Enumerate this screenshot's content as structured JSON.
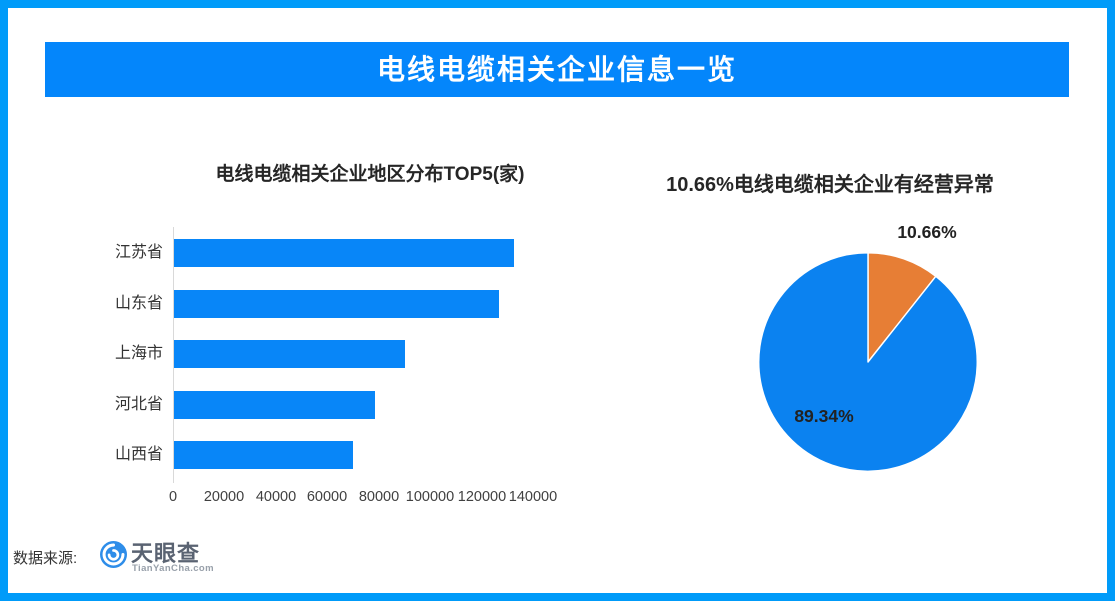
{
  "page": {
    "border_color": "#009BF9",
    "background": "#ffffff"
  },
  "header": {
    "title": "电线电缆相关企业信息一览",
    "bg_color": "#0486FB",
    "text_color": "#ffffff"
  },
  "chart_data": [
    {
      "type": "bar",
      "orientation": "horizontal",
      "title": "电线电缆相关企业地区分布TOP5(家)",
      "categories": [
        "江苏省",
        "山东省",
        "上海市",
        "河北省",
        "山西省"
      ],
      "values": [
        132200,
        126400,
        89800,
        78200,
        69600
      ],
      "xlabel": "",
      "ylabel": "",
      "xlim": [
        0,
        140000
      ],
      "x_ticks": [
        0,
        20000,
        40000,
        60000,
        80000,
        100000,
        120000,
        140000
      ],
      "bar_color": "#0886F8",
      "grid": false,
      "legend": false
    },
    {
      "type": "pie",
      "title": "10.66%电线电缆相关企业有经营异常",
      "slices": [
        {
          "label": "10.66%",
          "value": 10.66,
          "color": "#E77E35"
        },
        {
          "label": "89.34%",
          "value": 89.34,
          "color": "#0B82F0"
        }
      ],
      "start_angle": "top",
      "direction": "clockwise",
      "legend": false
    }
  ],
  "footer": {
    "source_label": "数据来源:",
    "logo_text": "天眼查",
    "logo_subtext": "TianYanCha.com",
    "logo_color": "#2E8DE9"
  }
}
